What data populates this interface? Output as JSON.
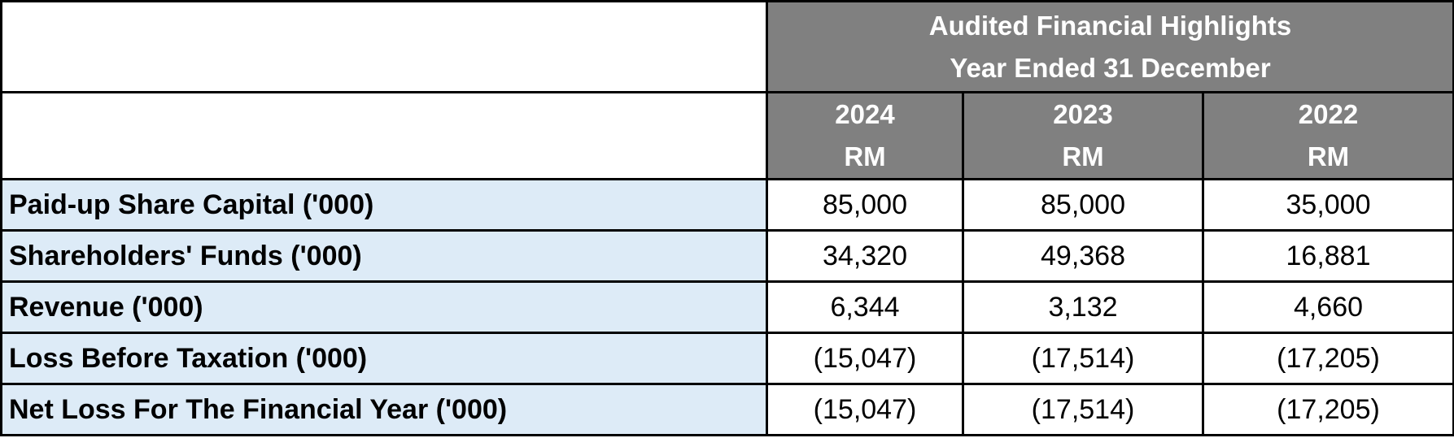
{
  "header": {
    "title_line1": "Audited Financial Highlights",
    "title_line2": "Year Ended 31 December"
  },
  "columns": [
    {
      "year": "2024",
      "currency": "RM"
    },
    {
      "year": "2023",
      "currency": "RM"
    },
    {
      "year": "2022",
      "currency": "RM"
    }
  ],
  "rows": [
    {
      "label": "Paid-up Share Capital ('000)",
      "values": [
        "85,000",
        "85,000",
        "35,000"
      ]
    },
    {
      "label": "Shareholders' Funds ('000)",
      "values": [
        "34,320",
        "49,368",
        "16,881"
      ]
    },
    {
      "label": "Revenue ('000)",
      "values": [
        "6,344",
        "3,132",
        "4,660"
      ]
    },
    {
      "label": "Loss Before Taxation ('000)",
      "values": [
        "(15,047)",
        "(17,514)",
        "(17,205)"
      ]
    },
    {
      "label": "Net Loss For The Financial Year ('000)",
      "values": [
        "(15,047)",
        "(17,514)",
        "(17,205)"
      ]
    }
  ],
  "colors": {
    "header_bg": "#808080",
    "header_text": "#ffffff",
    "label_bg": "#ddebf7",
    "border": "#000000"
  }
}
